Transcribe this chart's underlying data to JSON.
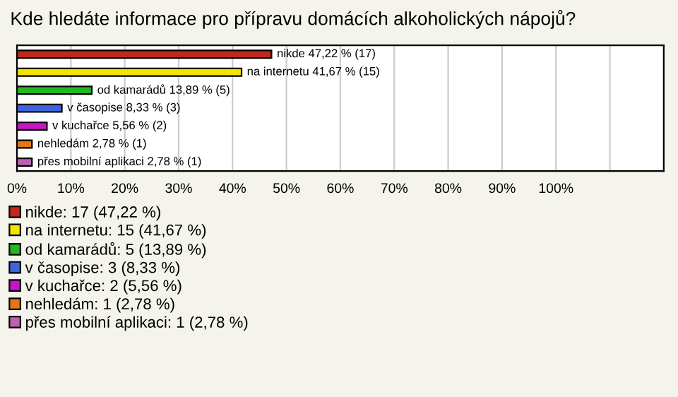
{
  "chart_data": {
    "type": "bar",
    "orientation": "horizontal",
    "title": "Kde hledáte informace pro přípravu domácích alkoholických nápojů?",
    "categories": [
      null,
      null,
      null,
      null,
      null,
      null,
      null
    ],
    "series": [
      {
        "name": "nikde: 17 (47,22 %)",
        "color": "#c0281c",
        "values": [
          47.22,
          null,
          null,
          null,
          null,
          null,
          null
        ],
        "value_labels": [
          "nikde 47,22 % (17)",
          null,
          null,
          null,
          null,
          null,
          null
        ]
      },
      {
        "name": "na internetu: 15 (41,67 %)",
        "color": "#f5e400",
        "values": [
          null,
          41.67,
          null,
          null,
          null,
          null,
          null
        ],
        "value_labels": [
          null,
          "na internetu 41,67 % (15)",
          null,
          null,
          null,
          null,
          null
        ]
      },
      {
        "name": "od kamarádů: 5 (13,89 %)",
        "color": "#22b822",
        "values": [
          null,
          null,
          13.89,
          null,
          null,
          null,
          null
        ],
        "value_labels": [
          null,
          null,
          "od kamarádů 13,89 % (5)",
          null,
          null,
          null,
          null
        ]
      },
      {
        "name": "v časopise: 3 (8,33 %)",
        "color": "#3c64dc",
        "values": [
          null,
          null,
          null,
          8.33,
          null,
          null,
          null
        ],
        "value_labels": [
          null,
          null,
          null,
          "v časopise 8,33 % (3)",
          null,
          null,
          null
        ]
      },
      {
        "name": "v kuchařce: 2 (5,56 %)",
        "color": "#c814c8",
        "values": [
          null,
          null,
          null,
          null,
          5.56,
          null,
          null
        ],
        "value_labels": [
          null,
          null,
          null,
          null,
          "v kuchařce 5,56 % (2)",
          null,
          null
        ]
      },
      {
        "name": "nehledám: 1 (2,78 %)",
        "color": "#e07814",
        "values": [
          null,
          null,
          null,
          null,
          null,
          2.78,
          null
        ],
        "value_labels": [
          null,
          null,
          null,
          null,
          null,
          "nehledám 2,78 % (1)",
          null
        ]
      },
      {
        "name": "přes mobilní aplikaci: 1 (2,78 %)",
        "color": "#c060b0",
        "values": [
          null,
          null,
          null,
          null,
          null,
          null,
          2.78
        ],
        "value_labels": [
          null,
          null,
          null,
          null,
          null,
          null,
          "přes mobilní aplikaci 2,78 % (1)"
        ]
      }
    ],
    "xlim": [
      0,
      120
    ],
    "xticks": [
      {
        "value": 0,
        "label": "0%"
      },
      {
        "value": 10,
        "label": "10%"
      },
      {
        "value": 20,
        "label": "20%"
      },
      {
        "value": 30,
        "label": "30%"
      },
      {
        "value": 40,
        "label": "40%"
      },
      {
        "value": 50,
        "label": "50%"
      },
      {
        "value": 60,
        "label": "60%"
      },
      {
        "value": 70,
        "label": "70%"
      },
      {
        "value": 80,
        "label": "80%"
      },
      {
        "value": 90,
        "label": "90%"
      },
      {
        "value": 100,
        "label": "100%"
      },
      {
        "value": 110,
        "label": null
      }
    ],
    "grid": "x",
    "legend": "bottom",
    "tick_labels": "x"
  }
}
